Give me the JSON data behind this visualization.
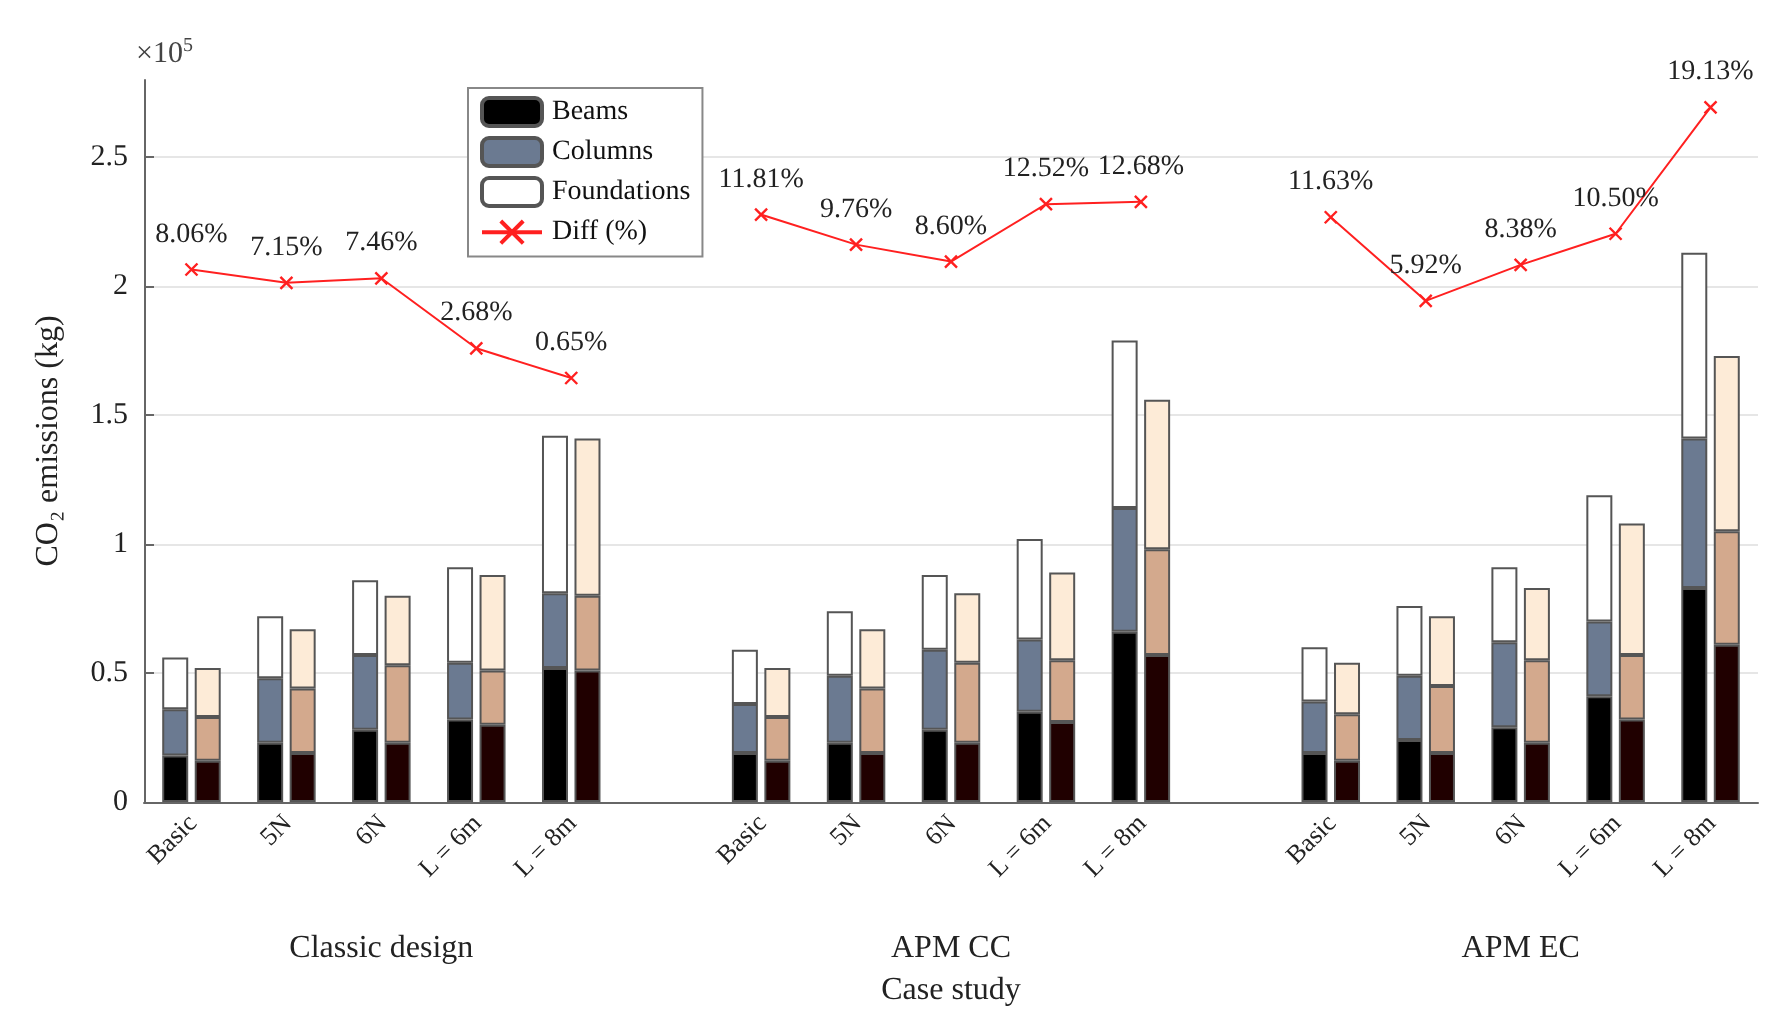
{
  "chart_data": {
    "type": "bar",
    "xlabel": "Case study",
    "ylabel": "CO₂ emissions (kg)",
    "annotations": [
      "×10$^{5}$",
      "Classic design",
      "APM CC",
      "APM EC"
    ],
    "categories": [
      "Basic",
      "5N",
      "6N",
      "L = 6m",
      "L = 8m",
      null,
      "Basic",
      "5N",
      "6N",
      "L = 6m",
      "L = 8m",
      null,
      "Basic",
      "5N",
      "6N",
      "L = 6m",
      "L = 8m"
    ],
    "series": [
      {
        "name": "Beams",
        "color": "#000000",
        "values": [
          0.18,
          0.23,
          0.28,
          0.32,
          0.52,
          null,
          0.19,
          0.23,
          0.28,
          0.35,
          0.66,
          null,
          0.19,
          0.24,
          0.29,
          0.41,
          0.83
        ],
        "base": [
          0,
          0,
          0,
          0,
          0,
          null,
          0,
          0,
          0,
          0,
          0,
          null,
          0,
          0,
          0,
          0,
          0
        ]
      },
      {
        "name": "Columns",
        "color": "#6b7a91",
        "values": [
          0.18,
          0.25,
          0.29,
          0.22,
          0.29,
          null,
          0.19,
          0.26,
          0.31,
          0.28,
          0.48,
          null,
          0.2,
          0.25,
          0.33,
          0.29,
          0.58
        ],
        "base": [
          0.18,
          0.23,
          0.28,
          0.32,
          0.52,
          null,
          0.19,
          0.23,
          0.28,
          0.35,
          0.66,
          null,
          0.19,
          0.24,
          0.29,
          0.41,
          0.83
        ]
      },
      {
        "name": "Foundations",
        "color": "#ffffff",
        "values": [
          0.2,
          0.24,
          0.29,
          0.37,
          0.61,
          null,
          0.21,
          0.25,
          0.29,
          0.39,
          0.65,
          null,
          0.21,
          0.27,
          0.29,
          0.49,
          0.72
        ],
        "base": [
          0.36,
          0.48,
          0.57,
          0.54,
          0.81,
          null,
          0.38,
          0.49,
          0.59,
          0.63,
          1.14,
          null,
          0.39,
          0.49,
          0.62,
          0.7,
          1.41
        ]
      },
      {
        "color": "#200000",
        "values": [
          0.16,
          0.19,
          0.23,
          0.3,
          0.51,
          null,
          0.16,
          0.19,
          0.23,
          0.31,
          0.57,
          null,
          0.16,
          0.19,
          0.23,
          0.32,
          0.61
        ],
        "base": [
          0,
          0,
          0,
          0,
          0,
          null,
          0,
          0,
          0,
          0,
          0,
          null,
          0,
          0,
          0,
          0,
          0
        ]
      },
      {
        "color": "#d3a98d",
        "values": [
          0.17,
          0.25,
          0.3,
          0.21,
          0.29,
          null,
          0.17,
          0.25,
          0.31,
          0.24,
          0.41,
          null,
          0.18,
          0.26,
          0.32,
          0.25,
          0.44
        ],
        "base": [
          0.16,
          0.19,
          0.23,
          0.3,
          0.51,
          null,
          0.16,
          0.19,
          0.23,
          0.31,
          0.57,
          null,
          0.16,
          0.19,
          0.23,
          0.32,
          0.61
        ]
      },
      {
        "color": "#fdebd7",
        "values": [
          0.19,
          0.23,
          0.27,
          0.37,
          0.61,
          null,
          0.19,
          0.23,
          0.27,
          0.34,
          0.58,
          null,
          0.2,
          0.27,
          0.28,
          0.51,
          0.68
        ],
        "base": [
          0.33,
          0.44,
          0.53,
          0.51,
          0.8,
          null,
          0.33,
          0.44,
          0.54,
          0.55,
          0.98,
          null,
          0.34,
          0.45,
          0.55,
          0.57,
          1.05
        ]
      },
      {
        "name": "Diff (%)",
        "type": "line",
        "axis": "y2",
        "color": "#ff2020",
        "marker": "cross",
        "values": [
          8.06,
          7.15,
          7.46,
          2.68,
          0.65,
          null,
          11.81,
          9.76,
          8.6,
          12.52,
          12.68,
          null,
          11.63,
          5.92,
          8.38,
          10.5,
          19.13
        ],
        "value_labels": [
          "8.06%",
          "7.15%",
          "7.46%",
          "2.68%",
          "0.65%",
          null,
          "11.81%",
          "9.76%",
          "8.60%",
          "12.52%",
          "12.68%",
          null,
          "11.63%",
          "5.92%",
          "8.38%",
          "10.50%",
          "19.13%"
        ]
      }
    ],
    "ylim": [
      0,
      2.8
    ],
    "yticks": [
      0,
      0.5,
      1,
      1.5,
      2,
      2.5
    ],
    "y2lim": [
      -28.3,
      21.0
    ],
    "tick_labels": "xy",
    "grid": "y",
    "legend": "top left"
  }
}
